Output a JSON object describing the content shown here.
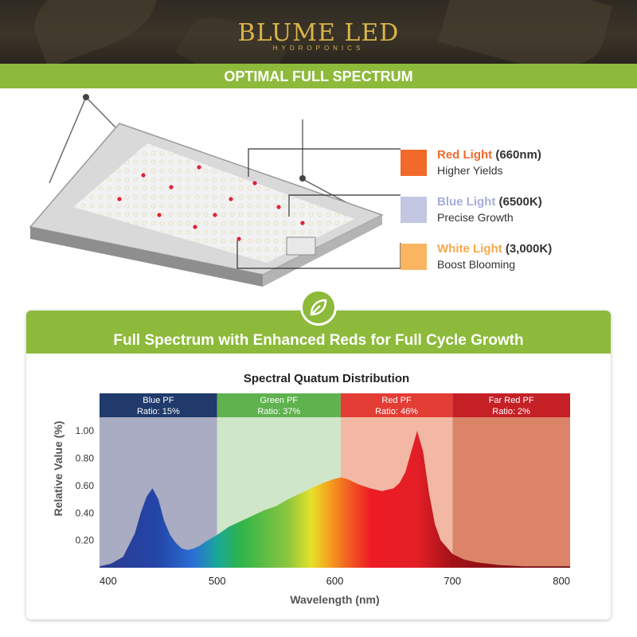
{
  "brand": {
    "name": "BLUME LED",
    "tagline": "HYDROPONICS"
  },
  "banner": {
    "title": "OPTIMAL FULL SPECTRUM"
  },
  "legend": [
    {
      "name": "Red Light",
      "spec": "(660nm)",
      "desc": "Higher Yields",
      "color": "#f26a2a"
    },
    {
      "name": "Blue Light",
      "spec": "(6500K)",
      "desc": "Precise Growth",
      "color": "#c3c7e2"
    },
    {
      "name": "White Light",
      "spec": "(3,000K)",
      "desc": "Boost Blooming",
      "color": "#fbb560"
    }
  ],
  "card": {
    "title": "Full Spectrum with Enhanced Reds for Full Cycle Growth"
  },
  "chart_data": {
    "type": "area",
    "title": "Spectral Quatum Distribution",
    "xlabel": "Wavelength (nm)",
    "ylabel": "Relative Value (%)",
    "xlim": [
      400,
      800
    ],
    "ylim": [
      0,
      1.1
    ],
    "x_ticks": [
      "400",
      "500",
      "600",
      "700",
      "800"
    ],
    "y_ticks": [
      "0.20",
      "0.40",
      "0.60",
      "0.80",
      "1.00"
    ],
    "bands": [
      {
        "name": "Blue PF",
        "ratio": "Ratio: 15%",
        "range": [
          400,
          500
        ],
        "header_color": "#1f3a6b",
        "fill_color": "#a9acc2"
      },
      {
        "name": "Green PF",
        "ratio": "Ratio: 37%",
        "range": [
          500,
          605
        ],
        "header_color": "#5fb24e",
        "fill_color": "#cfe6c8"
      },
      {
        "name": "Red PF",
        "ratio": "Ratio: 46%",
        "range": [
          605,
          700
        ],
        "header_color": "#e33d35",
        "fill_color": "#f2b8a4"
      },
      {
        "name": "Far Red PF",
        "ratio": "Ratio: 2%",
        "range": [
          700,
          800
        ],
        "header_color": "#c62027",
        "fill_color": "#dc8468"
      }
    ],
    "series": [
      {
        "x": [
          400,
          410,
          420,
          430,
          435,
          440,
          445,
          450,
          455,
          460,
          465,
          470,
          475,
          480,
          485,
          490,
          500,
          510,
          520,
          530,
          540,
          550,
          560,
          570,
          580,
          590,
          600,
          605,
          610,
          620,
          630,
          640,
          650,
          655,
          660,
          665,
          670,
          675,
          680,
          685,
          690,
          700,
          710,
          720,
          740,
          760,
          780,
          800
        ],
        "y": [
          0.01,
          0.03,
          0.08,
          0.25,
          0.4,
          0.52,
          0.58,
          0.5,
          0.34,
          0.24,
          0.18,
          0.14,
          0.13,
          0.14,
          0.16,
          0.19,
          0.24,
          0.3,
          0.34,
          0.38,
          0.42,
          0.45,
          0.5,
          0.54,
          0.58,
          0.62,
          0.65,
          0.66,
          0.65,
          0.61,
          0.58,
          0.56,
          0.58,
          0.62,
          0.7,
          0.85,
          1.0,
          0.85,
          0.55,
          0.32,
          0.2,
          0.1,
          0.06,
          0.04,
          0.02,
          0.01,
          0.01,
          0.01
        ]
      }
    ]
  }
}
